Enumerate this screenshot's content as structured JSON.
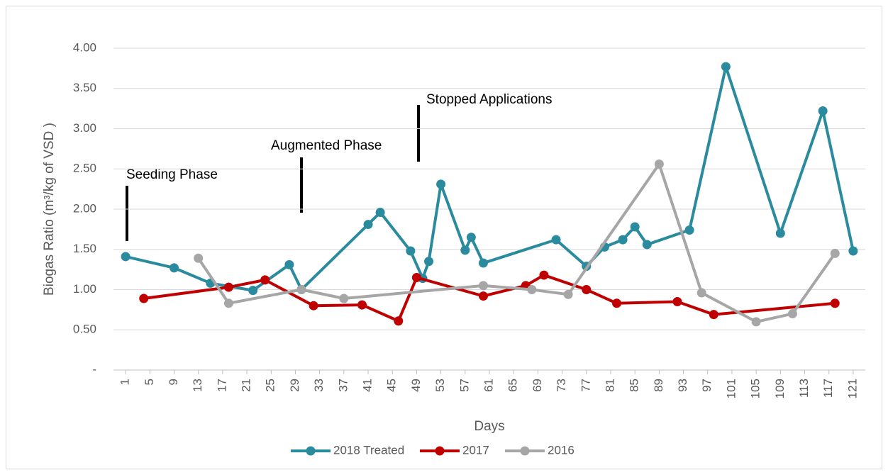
{
  "chart_data": {
    "type": "line",
    "y_label": "Biogas Ratio (m³/kg of VSD )",
    "x_label": "Days",
    "annotations": [
      "Seeding Phase",
      "Augmented Phase",
      "Stopped Applications"
    ],
    "xlim": [
      -1,
      123
    ],
    "xticks": [
      1,
      5,
      9,
      13,
      17,
      21,
      25,
      29,
      33,
      37,
      41,
      45,
      49,
      53,
      57,
      61,
      65,
      69,
      73,
      77,
      81,
      85,
      89,
      93,
      97,
      101,
      105,
      109,
      113,
      117,
      121
    ],
    "ylim": [
      0,
      4
    ],
    "yticks": [
      {
        "value": 0,
        "label": "-"
      },
      {
        "value": 0.5,
        "label": "0.50"
      },
      {
        "value": 1,
        "label": "1.00"
      },
      {
        "value": 1.5,
        "label": "1.50"
      },
      {
        "value": 2,
        "label": "2.00"
      },
      {
        "value": 2.5,
        "label": "2.50"
      },
      {
        "value": 3,
        "label": "3.00"
      },
      {
        "value": 3.5,
        "label": "3.50"
      },
      {
        "value": 4,
        "label": "4.00"
      }
    ],
    "grid": true,
    "legend": "bottom",
    "series": [
      {
        "name": "2018 Treated",
        "color": "#2a8a9e",
        "x": [
          1,
          9,
          15,
          22,
          28,
          30,
          41,
          43,
          48,
          50,
          51,
          53,
          57,
          58,
          60,
          72,
          77,
          80,
          83,
          85,
          87,
          94,
          100,
          109,
          116,
          121
        ],
        "values": [
          1.41,
          1.27,
          1.08,
          0.99,
          1.31,
          1.0,
          1.81,
          1.96,
          1.48,
          1.14,
          1.35,
          2.31,
          1.49,
          1.65,
          1.33,
          1.62,
          1.29,
          1.53,
          1.62,
          1.78,
          1.56,
          1.74,
          3.77,
          1.7,
          3.22,
          1.48
        ]
      },
      {
        "name": "2017",
        "color": "#c00000",
        "x": [
          4,
          18,
          24,
          32,
          40,
          46,
          49,
          60,
          67,
          70,
          77,
          82,
          92,
          98,
          118
        ],
        "values": [
          0.89,
          1.03,
          1.12,
          0.8,
          0.81,
          0.61,
          1.15,
          0.92,
          1.05,
          1.18,
          1.0,
          0.83,
          0.85,
          0.69,
          0.83
        ]
      },
      {
        "name": "2016",
        "color": "#a6a6a6",
        "x": [
          13,
          18,
          30,
          37,
          60,
          68,
          74,
          89,
          96,
          105,
          111,
          118
        ],
        "values": [
          1.39,
          0.83,
          1.0,
          0.89,
          1.05,
          1.0,
          0.94,
          2.56,
          0.96,
          0.6,
          0.7,
          1.45
        ]
      }
    ]
  }
}
